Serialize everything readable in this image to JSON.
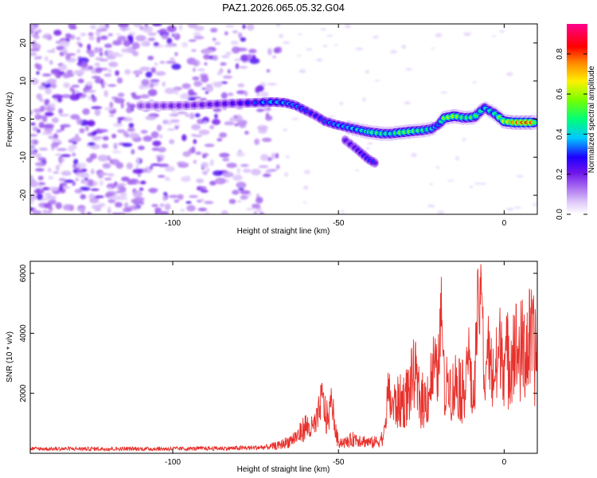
{
  "title": "PAZ1.2026.065.05.32.G04",
  "chart_data": [
    {
      "type": "heatmap",
      "title": "PAZ1.2026.065.05.32.G04",
      "xlabel": "Height of straight line (km)",
      "ylabel": "Frequency (Hz)",
      "xlim": [
        -143,
        10
      ],
      "ylim": [
        -25,
        25
      ],
      "xticks": [
        -100,
        -50,
        0
      ],
      "yticks": [
        -20,
        -10,
        0,
        10,
        20
      ],
      "colorbar": {
        "label": "Normalized spectral amplitude",
        "range": [
          0,
          0.95
        ],
        "ticks": [
          0.0,
          0.2,
          0.4,
          0.6,
          0.8
        ]
      },
      "noise_region_x": [
        -143,
        -68
      ],
      "main_ridge": {
        "x": [
          -110,
          -105,
          -100,
          -95,
          -90,
          -85,
          -80,
          -75,
          -70,
          -66,
          -63,
          -60,
          -57,
          -54,
          -51,
          -48,
          -45,
          -42,
          -40,
          -37,
          -34,
          -31,
          -28,
          -25,
          -22,
          -20,
          -18,
          -15,
          -12,
          -9,
          -6,
          -3,
          0,
          3,
          6,
          9
        ],
        "freq": [
          3.5,
          3.5,
          3.5,
          3.6,
          3.8,
          4.0,
          4.2,
          4.3,
          4.5,
          4.3,
          3.6,
          2.3,
          1.0,
          -0.6,
          -1.4,
          -2.0,
          -2.6,
          -3.2,
          -3.5,
          -3.8,
          -3.8,
          -3.5,
          -3.2,
          -3.0,
          -2.6,
          -1.6,
          0.3,
          0.8,
          0.3,
          0.5,
          3.0,
          1.5,
          -0.6,
          -0.9,
          -0.9,
          -0.9
        ],
        "amp": [
          0.18,
          0.2,
          0.22,
          0.22,
          0.24,
          0.26,
          0.28,
          0.35,
          0.42,
          0.4,
          0.38,
          0.36,
          0.3,
          0.36,
          0.4,
          0.42,
          0.46,
          0.5,
          0.55,
          0.55,
          0.5,
          0.62,
          0.6,
          0.55,
          0.5,
          0.35,
          0.65,
          0.7,
          0.55,
          0.6,
          0.45,
          0.5,
          0.7,
          0.85,
          0.9,
          0.92
        ]
      },
      "branch_ridge": {
        "x": [
          -48,
          -45,
          -43,
          -41,
          -39
        ],
        "freq": [
          -5.5,
          -7.5,
          -9.0,
          -10.5,
          -11.5
        ],
        "amp": [
          0.25,
          0.28,
          0.3,
          0.32,
          0.35
        ]
      }
    },
    {
      "type": "line",
      "xlabel": "Height of straight line (km)",
      "ylabel": "SNR (10 * v/v)",
      "xlim": [
        -143,
        10
      ],
      "ylim": [
        0,
        6400
      ],
      "xticks": [
        -100,
        -50,
        0
      ],
      "yticks": [
        2000,
        4000,
        6000
      ],
      "series": [
        {
          "name": "SNR",
          "color": "#e8312c",
          "x": [
            -143,
            -130,
            -120,
            -110,
            -100,
            -90,
            -80,
            -72,
            -68,
            -65,
            -62,
            -60,
            -58,
            -56,
            -54,
            -52,
            -50,
            -48,
            -45,
            -42,
            -40,
            -38,
            -36,
            -35,
            -33,
            -30,
            -28,
            -26,
            -24,
            -22,
            -20,
            -19,
            -18,
            -16,
            -14,
            -12,
            -10,
            -9,
            -8,
            -7,
            -6,
            -5,
            -4,
            -2,
            0,
            2,
            4,
            6,
            8,
            10
          ],
          "mean": [
            150,
            150,
            150,
            150,
            150,
            160,
            170,
            200,
            260,
            400,
            600,
            900,
            800,
            1100,
            1200,
            900,
            400,
            350,
            500,
            400,
            350,
            400,
            600,
            1400,
            1600,
            1800,
            2200,
            1900,
            1700,
            2300,
            2000,
            1800,
            1500,
            1900,
            2500,
            1800,
            1900,
            1600,
            2500,
            1800,
            1700,
            1800,
            2500,
            2800,
            3000,
            3200,
            3300,
            3400,
            3500,
            3200
          ],
          "peaks": [
            {
              "x": -55,
              "y": 2000
            },
            {
              "x": -52,
              "y": 1900
            },
            {
              "x": -35,
              "y": 2200
            },
            {
              "x": -27,
              "y": 2800
            },
            {
              "x": -21,
              "y": 3100
            },
            {
              "x": -19,
              "y": 5300
            },
            {
              "x": -17,
              "y": 2700
            },
            {
              "x": -11,
              "y": 3900
            },
            {
              "x": -8,
              "y": 5100
            },
            {
              "x": -7,
              "y": 6400
            },
            {
              "x": -5,
              "y": 3700
            },
            {
              "x": -1,
              "y": 3800
            },
            {
              "x": 3,
              "y": 3700
            },
            {
              "x": 8,
              "y": 3800
            }
          ]
        }
      ]
    }
  ]
}
